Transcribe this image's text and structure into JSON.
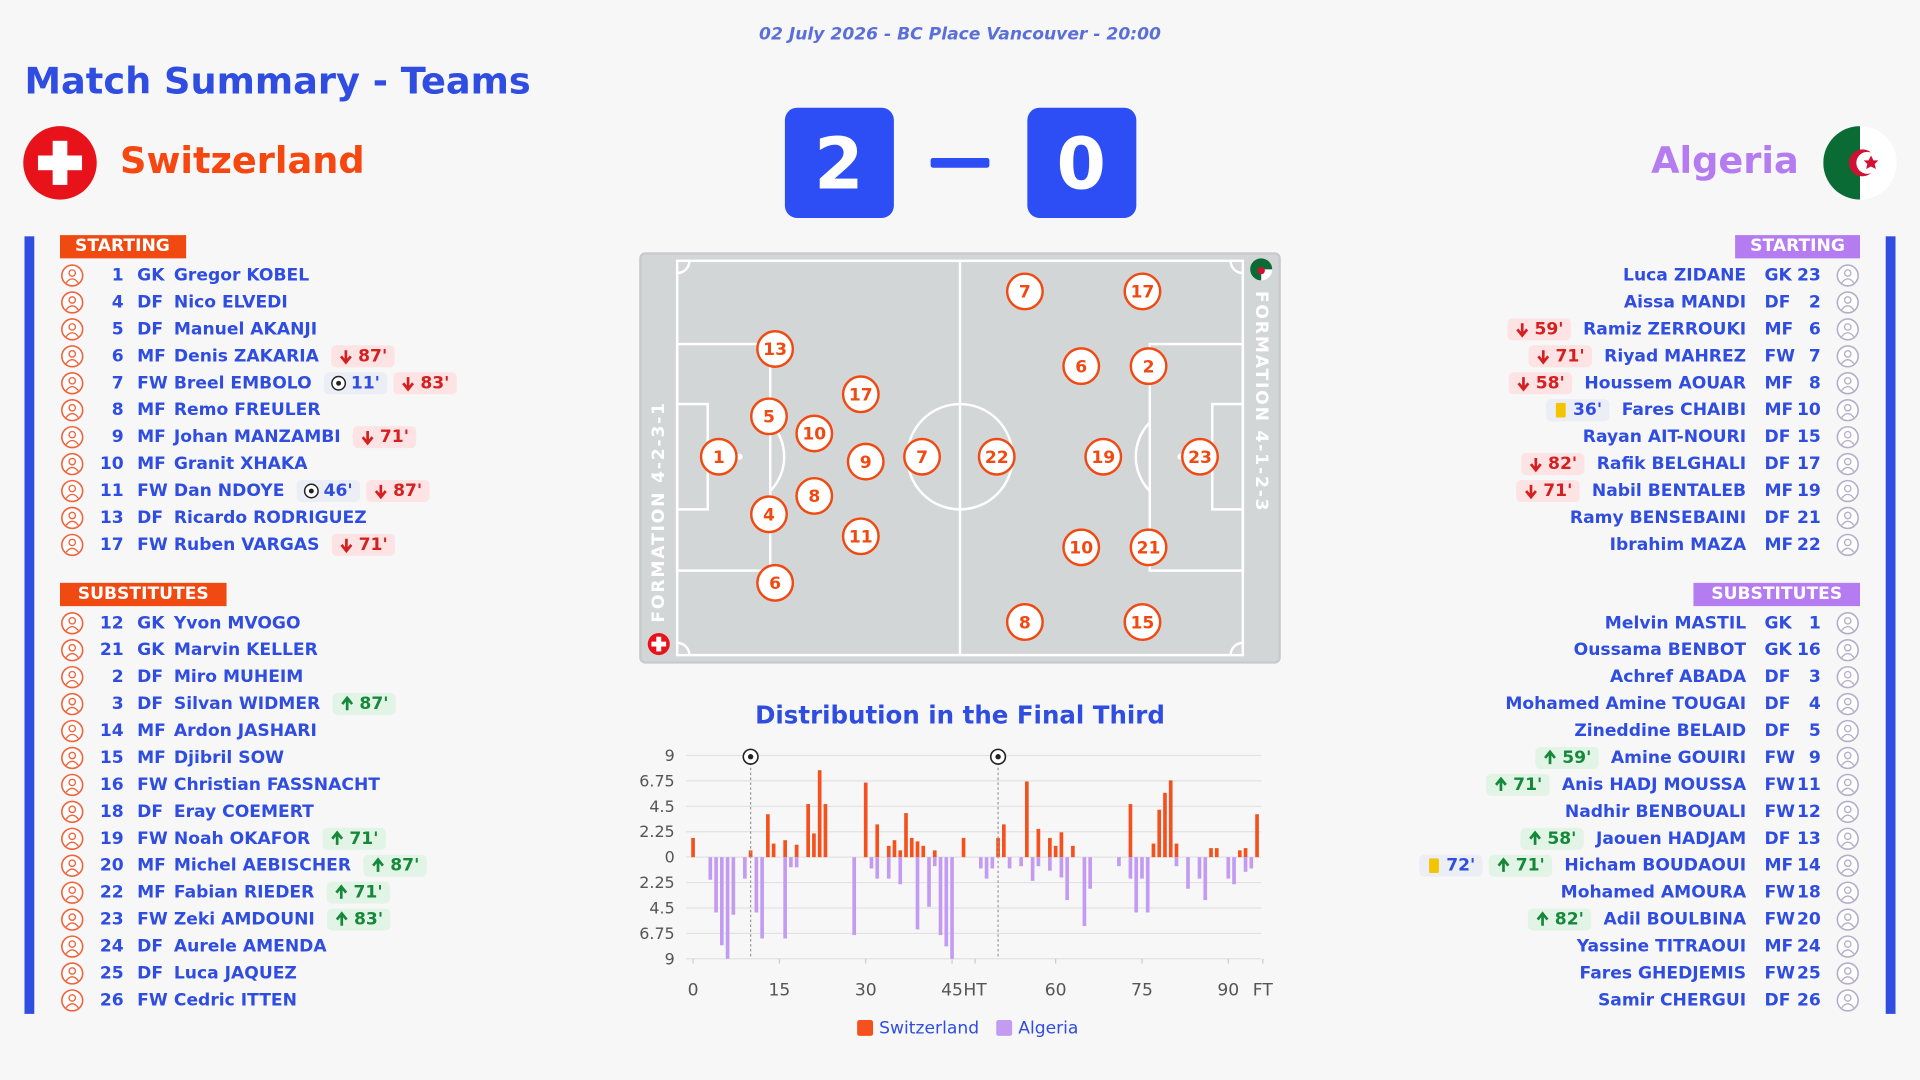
{
  "header": {
    "date": "02 July 2026 - BC Place Vancouver - 20:00",
    "title": "Match Summary - Teams"
  },
  "home": {
    "name": "Switzerland",
    "score": 2,
    "formation": "FORMATION 4-2-3-1",
    "starting_label": "STARTING",
    "subs_label": "SUBSTITUTES",
    "pitch": [
      1,
      13,
      5,
      4,
      6,
      10,
      8,
      17,
      9,
      11,
      7
    ],
    "starting": [
      {
        "number": 1,
        "pos": "GK",
        "name": "Gregor KOBEL",
        "events": []
      },
      {
        "number": 4,
        "pos": "DF",
        "name": "Nico ELVEDI",
        "events": []
      },
      {
        "number": 5,
        "pos": "DF",
        "name": "Manuel AKANJI",
        "events": []
      },
      {
        "number": 6,
        "pos": "MF",
        "name": "Denis ZAKARIA",
        "events": [
          {
            "type": "off",
            "minute": "87'"
          }
        ]
      },
      {
        "number": 7,
        "pos": "FW",
        "name": "Breel EMBOLO",
        "events": [
          {
            "type": "goal",
            "minute": "11'"
          },
          {
            "type": "off",
            "minute": "83'"
          }
        ]
      },
      {
        "number": 8,
        "pos": "MF",
        "name": "Remo FREULER",
        "events": []
      },
      {
        "number": 9,
        "pos": "MF",
        "name": "Johan MANZAMBI",
        "events": [
          {
            "type": "off",
            "minute": "71'"
          }
        ]
      },
      {
        "number": 10,
        "pos": "MF",
        "name": "Granit XHAKA",
        "events": []
      },
      {
        "number": 11,
        "pos": "FW",
        "name": "Dan NDOYE",
        "events": [
          {
            "type": "goal",
            "minute": "46'"
          },
          {
            "type": "off",
            "minute": "87'"
          }
        ]
      },
      {
        "number": 13,
        "pos": "DF",
        "name": "Ricardo RODRIGUEZ",
        "events": []
      },
      {
        "number": 17,
        "pos": "FW",
        "name": "Ruben VARGAS",
        "events": [
          {
            "type": "off",
            "minute": "71'"
          }
        ]
      }
    ],
    "subs": [
      {
        "number": 12,
        "pos": "GK",
        "name": "Yvon MVOGO",
        "events": []
      },
      {
        "number": 21,
        "pos": "GK",
        "name": "Marvin KELLER",
        "events": []
      },
      {
        "number": 2,
        "pos": "DF",
        "name": "Miro MUHEIM",
        "events": []
      },
      {
        "number": 3,
        "pos": "DF",
        "name": "Silvan WIDMER",
        "events": [
          {
            "type": "on",
            "minute": "87'"
          }
        ]
      },
      {
        "number": 14,
        "pos": "MF",
        "name": "Ardon JASHARI",
        "events": []
      },
      {
        "number": 15,
        "pos": "MF",
        "name": "Djibril SOW",
        "events": []
      },
      {
        "number": 16,
        "pos": "FW",
        "name": "Christian FASSNACHT",
        "events": []
      },
      {
        "number": 18,
        "pos": "DF",
        "name": "Eray COEMERT",
        "events": []
      },
      {
        "number": 19,
        "pos": "FW",
        "name": "Noah OKAFOR",
        "events": [
          {
            "type": "on",
            "minute": "71'"
          }
        ]
      },
      {
        "number": 20,
        "pos": "MF",
        "name": "Michel AEBISCHER",
        "events": [
          {
            "type": "on",
            "minute": "87'"
          }
        ]
      },
      {
        "number": 22,
        "pos": "MF",
        "name": "Fabian RIEDER",
        "events": [
          {
            "type": "on",
            "minute": "71'"
          }
        ]
      },
      {
        "number": 23,
        "pos": "FW",
        "name": "Zeki AMDOUNI",
        "events": [
          {
            "type": "on",
            "minute": "83'"
          }
        ]
      },
      {
        "number": 24,
        "pos": "DF",
        "name": "Aurele AMENDA",
        "events": []
      },
      {
        "number": 25,
        "pos": "DF",
        "name": "Luca JAQUEZ",
        "events": []
      },
      {
        "number": 26,
        "pos": "FW",
        "name": "Cedric ITTEN",
        "events": []
      }
    ]
  },
  "away": {
    "name": "Algeria",
    "score": 0,
    "formation": "FORMATION 4-1-2-3",
    "starting_label": "STARTING",
    "subs_label": "SUBSTITUTES",
    "pitch": [
      23,
      17,
      2,
      21,
      15,
      19,
      6,
      10,
      7,
      22,
      8
    ],
    "starting": [
      {
        "number": 23,
        "pos": "GK",
        "name": "Luca ZIDANE",
        "events": []
      },
      {
        "number": 2,
        "pos": "DF",
        "name": "Aissa MANDI",
        "events": []
      },
      {
        "number": 6,
        "pos": "MF",
        "name": "Ramiz ZERROUKI",
        "events": [
          {
            "type": "off",
            "minute": "59'"
          }
        ]
      },
      {
        "number": 7,
        "pos": "FW",
        "name": "Riyad MAHREZ",
        "events": [
          {
            "type": "off",
            "minute": "71'"
          }
        ]
      },
      {
        "number": 8,
        "pos": "MF",
        "name": "Houssem AOUAR",
        "events": [
          {
            "type": "off",
            "minute": "58'"
          }
        ]
      },
      {
        "number": 10,
        "pos": "MF",
        "name": "Fares CHAIBI",
        "events": [
          {
            "type": "yellow",
            "minute": "36'"
          }
        ]
      },
      {
        "number": 15,
        "pos": "DF",
        "name": "Rayan AIT-NOURI",
        "events": []
      },
      {
        "number": 17,
        "pos": "DF",
        "name": "Rafik BELGHALI",
        "events": [
          {
            "type": "off",
            "minute": "82'"
          }
        ]
      },
      {
        "number": 19,
        "pos": "MF",
        "name": "Nabil BENTALEB",
        "events": [
          {
            "type": "off",
            "minute": "71'"
          }
        ]
      },
      {
        "number": 21,
        "pos": "DF",
        "name": "Ramy BENSEBAINI",
        "events": []
      },
      {
        "number": 22,
        "pos": "MF",
        "name": "Ibrahim MAZA",
        "events": []
      }
    ],
    "subs": [
      {
        "number": 1,
        "pos": "GK",
        "name": "Melvin MASTIL",
        "events": []
      },
      {
        "number": 16,
        "pos": "GK",
        "name": "Oussama BENBOT",
        "events": []
      },
      {
        "number": 3,
        "pos": "DF",
        "name": "Achref ABADA",
        "events": []
      },
      {
        "number": 4,
        "pos": "DF",
        "name": "Mohamed Amine TOUGAI",
        "events": []
      },
      {
        "number": 5,
        "pos": "DF",
        "name": "Zineddine BELAID",
        "events": []
      },
      {
        "number": 9,
        "pos": "FW",
        "name": "Amine GOUIRI",
        "events": [
          {
            "type": "on",
            "minute": "59'"
          }
        ]
      },
      {
        "number": 11,
        "pos": "FW",
        "name": "Anis HADJ MOUSSA",
        "events": [
          {
            "type": "on",
            "minute": "71'"
          }
        ]
      },
      {
        "number": 12,
        "pos": "FW",
        "name": "Nadhir BENBOUALI",
        "events": []
      },
      {
        "number": 13,
        "pos": "DF",
        "name": "Jaouen HADJAM",
        "events": [
          {
            "type": "on",
            "minute": "58'"
          }
        ]
      },
      {
        "number": 14,
        "pos": "MF",
        "name": "Hicham BOUDAOUI",
        "events": [
          {
            "type": "yellow",
            "minute": "72'"
          },
          {
            "type": "on",
            "minute": "71'"
          }
        ]
      },
      {
        "number": 18,
        "pos": "FW",
        "name": "Mohamed AMOURA",
        "events": []
      },
      {
        "number": 20,
        "pos": "FW",
        "name": "Adil BOULBINA",
        "events": [
          {
            "type": "on",
            "minute": "82'"
          }
        ]
      },
      {
        "number": 24,
        "pos": "MF",
        "name": "Yassine TITRAOUI",
        "events": []
      },
      {
        "number": 25,
        "pos": "FW",
        "name": "Fares GHEDJEMIS",
        "events": []
      },
      {
        "number": 26,
        "pos": "DF",
        "name": "Samir CHERGUI",
        "events": []
      }
    ]
  },
  "chart_data": {
    "type": "bar",
    "title": "Distribution in the Final Third",
    "series": [
      {
        "name": "Switzerland",
        "color": "#f4511e",
        "x": [
          0,
          10,
          13,
          14,
          16,
          18,
          20,
          21,
          22,
          23,
          30,
          32,
          34,
          35,
          36,
          37,
          38,
          39,
          40,
          42,
          47,
          53,
          54,
          58,
          60,
          62,
          63,
          64,
          66,
          76,
          80,
          81,
          82,
          83,
          84,
          90,
          91,
          95,
          96,
          98
        ],
        "values": [
          1.7,
          0.6,
          3.8,
          1.2,
          1.5,
          1.1,
          4.7,
          2.1,
          7.7,
          4.7,
          6.6,
          2.9,
          1,
          1.5,
          0.6,
          3.9,
          1.7,
          1.4,
          1,
          0.6,
          1.7,
          1.7,
          2.9,
          6.7,
          2.5,
          1.7,
          1,
          2.2,
          1,
          4.7,
          1.2,
          4.2,
          5.7,
          6.8,
          1.2,
          0.8,
          0.8,
          0.6,
          0.8,
          3.8
        ]
      },
      {
        "name": "Algeria",
        "color": "#c39cf2",
        "x": [
          3,
          4,
          5,
          6,
          7,
          9,
          11,
          12,
          16,
          17,
          18,
          28,
          31,
          32,
          34,
          36,
          39,
          41,
          42,
          43,
          44,
          45,
          50,
          51,
          52,
          55,
          57,
          59,
          60,
          62,
          64,
          65,
          68,
          69,
          74,
          76,
          77,
          78,
          79,
          84,
          86,
          88,
          89,
          93,
          94,
          96,
          97
        ],
        "values": [
          -2,
          -4.9,
          -7.8,
          -9,
          -5.1,
          -1.9,
          -4.9,
          -7.2,
          -7.2,
          -0.9,
          -0.9,
          -6.9,
          -1,
          -1.9,
          -1.9,
          -2.4,
          -6.4,
          -4.4,
          -0.8,
          -6.9,
          -7.9,
          -9,
          -1,
          -1.9,
          -1,
          -1,
          -0.8,
          -2.1,
          -0.8,
          -1.2,
          -1.8,
          -3.8,
          -6.1,
          -2.8,
          -0.8,
          -1.9,
          -4.9,
          -1.9,
          -4.9,
          -0.8,
          -2.8,
          -1.9,
          -3.8,
          -1.9,
          -2.4,
          -1.3,
          -1
        ]
      }
    ],
    "goals": [
      10,
      53
    ],
    "xlim": [
      -1,
      100
    ],
    "xticks": [
      0,
      15,
      30,
      45,
      {
        "value": 49,
        "label": "HT"
      },
      {
        "value": 63,
        "label": "60"
      },
      {
        "value": 78,
        "label": "75"
      },
      {
        "value": 93,
        "label": "90"
      },
      {
        "value": 99,
        "label": "FT"
      }
    ],
    "ylim": [
      -9,
      9
    ],
    "yticks": [
      9,
      6.75,
      4.5,
      2.25,
      0,
      {
        "value": -2.25,
        "label": "2.25"
      },
      {
        "value": -4.5,
        "label": "4.5"
      },
      {
        "value": -6.75,
        "label": "6.75"
      },
      {
        "value": -9,
        "label": "9"
      }
    ],
    "grid": true,
    "legend": "bottom"
  }
}
